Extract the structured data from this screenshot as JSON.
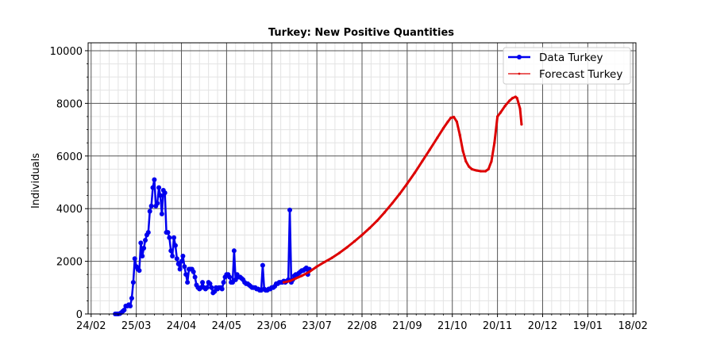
{
  "chart_data": {
    "type": "line",
    "title": "Turkey: New Positive Quantities",
    "xlabel": "",
    "ylabel": "Individuals",
    "x_unit": "day index (0 = 24/02)",
    "xlim": [
      -2,
      362
    ],
    "ylim": [
      0,
      10300
    ],
    "yticks": [
      0,
      2000,
      4000,
      6000,
      8000,
      10000
    ],
    "xticks": [
      {
        "label": "24/02",
        "x": 0
      },
      {
        "label": "25/03",
        "x": 30
      },
      {
        "label": "24/04",
        "x": 60
      },
      {
        "label": "24/05",
        "x": 90
      },
      {
        "label": "23/06",
        "x": 120
      },
      {
        "label": "23/07",
        "x": 150
      },
      {
        "label": "22/08",
        "x": 180
      },
      {
        "label": "21/09",
        "x": 210
      },
      {
        "label": "21/10",
        "x": 240
      },
      {
        "label": "20/11",
        "x": 270
      },
      {
        "label": "20/12",
        "x": 300
      },
      {
        "label": "19/01",
        "x": 330
      },
      {
        "label": "18/02",
        "x": 360
      }
    ],
    "grid": true,
    "legend_position": "top-right",
    "series": [
      {
        "name": "Data Turkey",
        "color": "#0000ee",
        "marker": "circle",
        "points": [
          [
            16,
            0
          ],
          [
            17,
            0
          ],
          [
            18,
            0
          ],
          [
            19,
            10
          ],
          [
            20,
            50
          ],
          [
            21,
            100
          ],
          [
            22,
            150
          ],
          [
            23,
            300
          ],
          [
            24,
            300
          ],
          [
            25,
            350
          ],
          [
            26,
            300
          ],
          [
            27,
            600
          ],
          [
            28,
            1200
          ],
          [
            29,
            2100
          ],
          [
            30,
            1800
          ],
          [
            31,
            1700
          ],
          [
            32,
            1650
          ],
          [
            33,
            2700
          ],
          [
            34,
            2200
          ],
          [
            35,
            2500
          ],
          [
            36,
            2800
          ],
          [
            37,
            3000
          ],
          [
            38,
            3100
          ],
          [
            39,
            3900
          ],
          [
            40,
            4100
          ],
          [
            41,
            4800
          ],
          [
            42,
            5100
          ],
          [
            43,
            4100
          ],
          [
            44,
            4200
          ],
          [
            45,
            4800
          ],
          [
            46,
            4500
          ],
          [
            47,
            3800
          ],
          [
            48,
            4700
          ],
          [
            49,
            4600
          ],
          [
            50,
            3100
          ],
          [
            51,
            3100
          ],
          [
            52,
            2900
          ],
          [
            53,
            2400
          ],
          [
            54,
            2200
          ],
          [
            55,
            2900
          ],
          [
            56,
            2600
          ],
          [
            57,
            2100
          ],
          [
            58,
            1900
          ],
          [
            59,
            1700
          ],
          [
            60,
            2000
          ],
          [
            61,
            2200
          ],
          [
            62,
            1800
          ],
          [
            63,
            1500
          ],
          [
            64,
            1200
          ],
          [
            65,
            1700
          ],
          [
            66,
            1700
          ],
          [
            67,
            1700
          ],
          [
            68,
            1600
          ],
          [
            69,
            1400
          ],
          [
            70,
            1100
          ],
          [
            71,
            1000
          ],
          [
            72,
            950
          ],
          [
            73,
            1000
          ],
          [
            74,
            1200
          ],
          [
            75,
            1000
          ],
          [
            76,
            950
          ],
          [
            77,
            1000
          ],
          [
            78,
            1200
          ],
          [
            79,
            1150
          ],
          [
            80,
            1000
          ],
          [
            81,
            800
          ],
          [
            82,
            850
          ],
          [
            83,
            1000
          ],
          [
            84,
            950
          ],
          [
            85,
            1000
          ],
          [
            86,
            1000
          ],
          [
            87,
            950
          ],
          [
            88,
            1200
          ],
          [
            89,
            1400
          ],
          [
            90,
            1500
          ],
          [
            91,
            1500
          ],
          [
            92,
            1400
          ],
          [
            93,
            1200
          ],
          [
            94,
            1200
          ],
          [
            95,
            2400
          ],
          [
            96,
            1300
          ],
          [
            97,
            1500
          ],
          [
            98,
            1400
          ],
          [
            99,
            1400
          ],
          [
            100,
            1350
          ],
          [
            101,
            1300
          ],
          [
            102,
            1200
          ],
          [
            103,
            1150
          ],
          [
            104,
            1150
          ],
          [
            105,
            1100
          ],
          [
            106,
            1050
          ],
          [
            107,
            1000
          ],
          [
            108,
            1000
          ],
          [
            109,
            1000
          ],
          [
            110,
            950
          ],
          [
            111,
            950
          ],
          [
            112,
            900
          ],
          [
            113,
            900
          ],
          [
            114,
            1850
          ],
          [
            115,
            950
          ],
          [
            116,
            900
          ],
          [
            117,
            900
          ],
          [
            118,
            950
          ],
          [
            119,
            950
          ],
          [
            120,
            1000
          ],
          [
            121,
            1000
          ],
          [
            122,
            1050
          ],
          [
            123,
            1150
          ],
          [
            124,
            1150
          ],
          [
            125,
            1200
          ],
          [
            126,
            1200
          ],
          [
            127,
            1200
          ],
          [
            128,
            1250
          ],
          [
            129,
            1200
          ],
          [
            130,
            1250
          ],
          [
            131,
            1300
          ],
          [
            132,
            3950
          ],
          [
            133,
            1200
          ],
          [
            134,
            1300
          ],
          [
            135,
            1450
          ],
          [
            136,
            1500
          ],
          [
            137,
            1500
          ],
          [
            138,
            1550
          ],
          [
            139,
            1600
          ],
          [
            140,
            1650
          ],
          [
            141,
            1650
          ],
          [
            142,
            1700
          ],
          [
            143,
            1750
          ],
          [
            144,
            1500
          ],
          [
            145,
            1700
          ]
        ]
      },
      {
        "name": "Forecast Turkey",
        "color": "#dd0000",
        "marker": "dot",
        "points": [
          [
            128,
            1200
          ],
          [
            132,
            1250
          ],
          [
            136,
            1350
          ],
          [
            140,
            1450
          ],
          [
            145,
            1600
          ],
          [
            150,
            1800
          ],
          [
            155,
            1970
          ],
          [
            160,
            2130
          ],
          [
            165,
            2320
          ],
          [
            170,
            2530
          ],
          [
            175,
            2760
          ],
          [
            180,
            3000
          ],
          [
            185,
            3260
          ],
          [
            190,
            3540
          ],
          [
            195,
            3860
          ],
          [
            200,
            4200
          ],
          [
            205,
            4560
          ],
          [
            210,
            4950
          ],
          [
            215,
            5360
          ],
          [
            220,
            5800
          ],
          [
            225,
            6240
          ],
          [
            230,
            6690
          ],
          [
            234,
            7050
          ],
          [
            237,
            7300
          ],
          [
            239,
            7450
          ],
          [
            241,
            7480
          ],
          [
            243,
            7300
          ],
          [
            245,
            6800
          ],
          [
            247,
            6200
          ],
          [
            249,
            5800
          ],
          [
            251,
            5600
          ],
          [
            253,
            5500
          ],
          [
            256,
            5450
          ],
          [
            259,
            5420
          ],
          [
            262,
            5420
          ],
          [
            264,
            5500
          ],
          [
            266,
            5800
          ],
          [
            268,
            6500
          ],
          [
            270,
            7500
          ],
          [
            272,
            7650
          ],
          [
            275,
            7900
          ],
          [
            278,
            8100
          ],
          [
            280,
            8200
          ],
          [
            282,
            8250
          ],
          [
            283,
            8200
          ],
          [
            285,
            7800
          ],
          [
            286,
            7200
          ]
        ]
      }
    ]
  }
}
